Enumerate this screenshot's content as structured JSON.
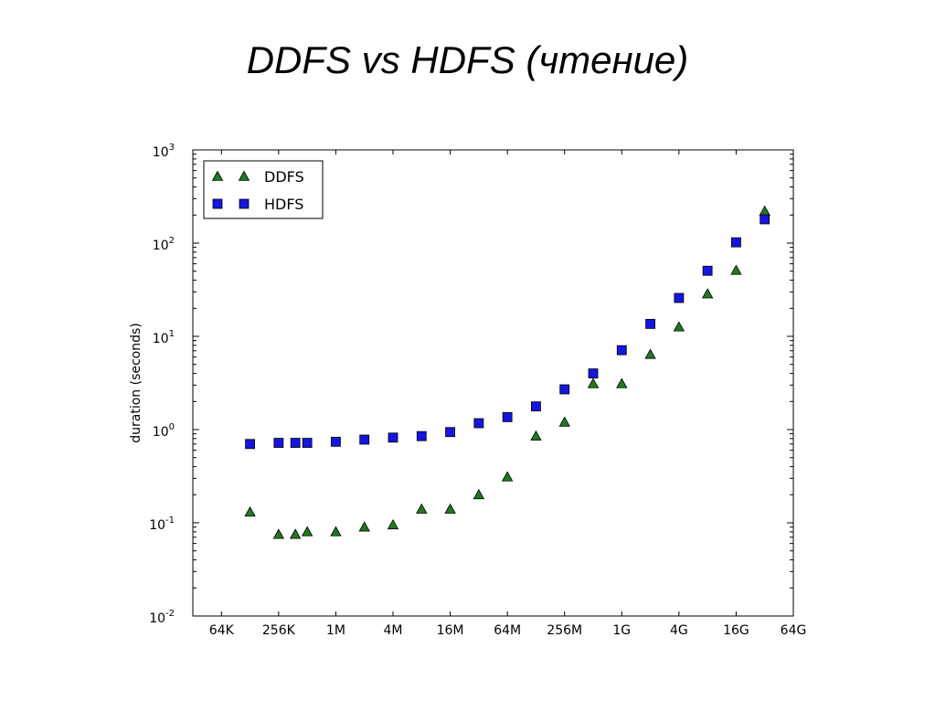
{
  "slide": {
    "title": "DDFS vs HDFS (чтение)"
  },
  "chart_data": {
    "type": "scatter",
    "title": "",
    "xlabel": "",
    "ylabel": "duration (seconds)",
    "x_scale": "log2",
    "y_scale": "log10",
    "x_ticks": [
      "64K",
      "256K",
      "1M",
      "4M",
      "16M",
      "64M",
      "256M",
      "1G",
      "4G",
      "16G",
      "64G"
    ],
    "y_ticks": [
      {
        "base": "10",
        "exp": "-2"
      },
      {
        "base": "10",
        "exp": "-1"
      },
      {
        "base": "10",
        "exp": "0"
      },
      {
        "base": "10",
        "exp": "1"
      },
      {
        "base": "10",
        "exp": "2"
      },
      {
        "base": "10",
        "exp": "3"
      }
    ],
    "ylim": [
      0.01,
      1000
    ],
    "legend_position": "top-left",
    "grid": false,
    "series": [
      {
        "name": "DDFS",
        "marker": "triangle",
        "color": "#1f7a1f",
        "points": [
          {
            "x": "128K",
            "y": 0.13
          },
          {
            "x": "256K",
            "y": 0.075
          },
          {
            "x": "384K",
            "y": 0.075
          },
          {
            "x": "512K",
            "y": 0.08
          },
          {
            "x": "1M",
            "y": 0.08
          },
          {
            "x": "2M",
            "y": 0.09
          },
          {
            "x": "4M",
            "y": 0.095
          },
          {
            "x": "8M",
            "y": 0.14
          },
          {
            "x": "16M",
            "y": 0.14
          },
          {
            "x": "32M",
            "y": 0.2
          },
          {
            "x": "64M",
            "y": 0.31
          },
          {
            "x": "128M",
            "y": 0.85
          },
          {
            "x": "256M",
            "y": 1.2
          },
          {
            "x": "512M",
            "y": 3.1
          },
          {
            "x": "1G",
            "y": 3.1
          },
          {
            "x": "2G",
            "y": 6.4
          },
          {
            "x": "4G",
            "y": 12.6
          },
          {
            "x": "8G",
            "y": 28.5
          },
          {
            "x": "16G",
            "y": 51
          },
          {
            "x": "32G",
            "y": 220
          }
        ]
      },
      {
        "name": "HDFS",
        "marker": "square",
        "color": "#1515e0",
        "points": [
          {
            "x": "128K",
            "y": 0.7
          },
          {
            "x": "256K",
            "y": 0.72
          },
          {
            "x": "384K",
            "y": 0.72
          },
          {
            "x": "512K",
            "y": 0.72
          },
          {
            "x": "1M",
            "y": 0.74
          },
          {
            "x": "2M",
            "y": 0.78
          },
          {
            "x": "4M",
            "y": 0.82
          },
          {
            "x": "8M",
            "y": 0.85
          },
          {
            "x": "16M",
            "y": 0.94
          },
          {
            "x": "32M",
            "y": 1.17
          },
          {
            "x": "64M",
            "y": 1.36
          },
          {
            "x": "128M",
            "y": 1.77
          },
          {
            "x": "256M",
            "y": 2.7
          },
          {
            "x": "512M",
            "y": 4.0
          },
          {
            "x": "1G",
            "y": 7.1
          },
          {
            "x": "2G",
            "y": 13.6
          },
          {
            "x": "4G",
            "y": 25.8
          },
          {
            "x": "8G",
            "y": 50.5
          },
          {
            "x": "16G",
            "y": 102
          },
          {
            "x": "32G",
            "y": 180
          }
        ]
      }
    ]
  }
}
